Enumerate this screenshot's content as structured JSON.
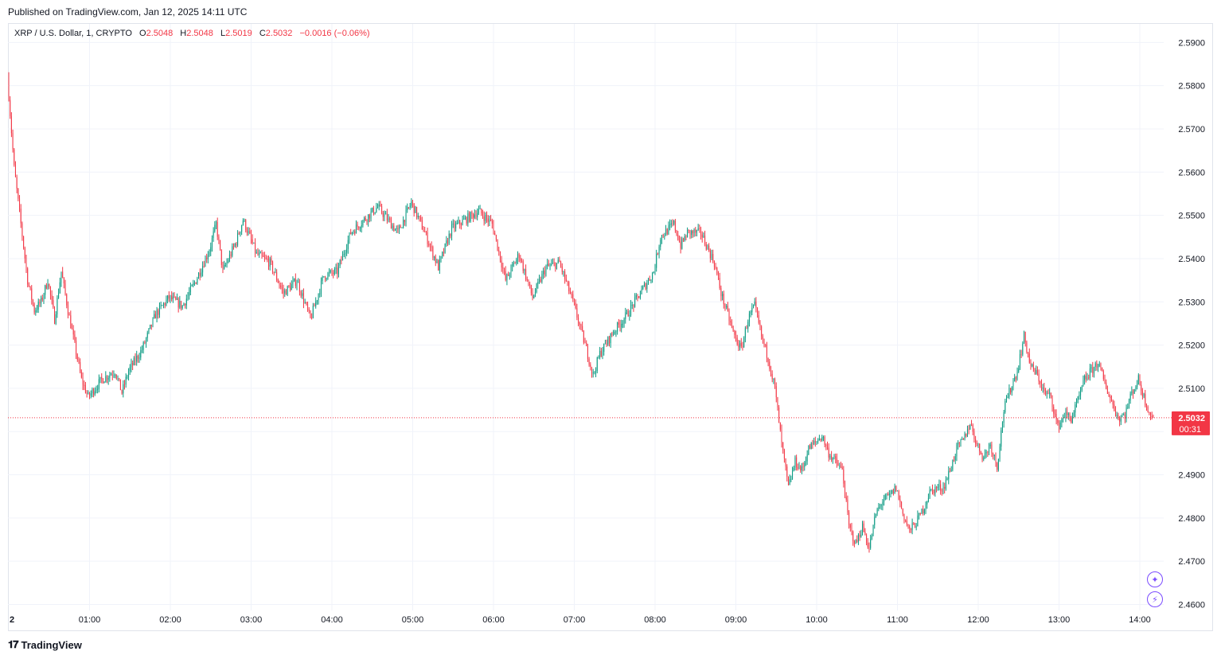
{
  "header": {
    "published_text": "Published on TradingView.com, Jan 12, 2025 14:11 UTC"
  },
  "legend": {
    "symbol_text": "XRP / U.S. Dollar, 1, CRYPTO",
    "open_label": "O",
    "open_value": "2.5048",
    "high_label": "H",
    "high_value": "2.5048",
    "low_label": "L",
    "low_value": "2.5019",
    "close_label": "C",
    "close_value": "2.5032",
    "change_text": "−0.0016 (−0.06%)"
  },
  "price_badge": {
    "price": "2.5032",
    "countdown": "00:31"
  },
  "footer": {
    "brand": "TradingView"
  },
  "icons": [
    "ai-sparkle-icon",
    "lightning-icon"
  ],
  "colors": {
    "up": "#089981",
    "down": "#f23645",
    "grid": "#f0f3fa",
    "accent": "#7b4cff"
  },
  "chart_data": {
    "type": "candlestick",
    "title": "XRP / U.S. Dollar, 1, CRYPTO",
    "interval": "1 minute",
    "x_range": [
      "00:00",
      "14:11"
    ],
    "y_range": [
      2.455,
      2.5965
    ],
    "y_ticks": [
      "2.5900",
      "2.5800",
      "2.5700",
      "2.5600",
      "2.5500",
      "2.5400",
      "2.5300",
      "2.5200",
      "2.5100",
      "2.5000",
      "2.4900",
      "2.4800",
      "2.4700",
      "2.4600"
    ],
    "x_ticks": [
      "2",
      "01:00",
      "02:00",
      "03:00",
      "04:00",
      "05:00",
      "06:00",
      "07:00",
      "08:00",
      "09:00",
      "10:00",
      "11:00",
      "12:00",
      "13:00",
      "14:00"
    ],
    "last_price": 2.5032,
    "price_path": [
      [
        "00:00",
        2.582
      ],
      [
        "00:05",
        2.561
      ],
      [
        "00:10",
        2.548
      ],
      [
        "00:15",
        2.535
      ],
      [
        "00:20",
        2.528
      ],
      [
        "00:25",
        2.53
      ],
      [
        "00:30",
        2.535
      ],
      [
        "00:35",
        2.526
      ],
      [
        "00:40",
        2.537
      ],
      [
        "00:45",
        2.528
      ],
      [
        "00:55",
        2.512
      ],
      [
        "01:00",
        2.508
      ],
      [
        "01:10",
        2.512
      ],
      [
        "01:20",
        2.514
      ],
      [
        "01:25",
        2.509
      ],
      [
        "01:30",
        2.514
      ],
      [
        "01:40",
        2.519
      ],
      [
        "01:50",
        2.527
      ],
      [
        "02:00",
        2.531
      ],
      [
        "02:10",
        2.529
      ],
      [
        "02:20",
        2.535
      ],
      [
        "02:30",
        2.542
      ],
      [
        "02:35",
        2.548
      ],
      [
        "02:40",
        2.537
      ],
      [
        "02:50",
        2.544
      ],
      [
        "02:55",
        2.549
      ],
      [
        "03:05",
        2.541
      ],
      [
        "03:15",
        2.539
      ],
      [
        "03:25",
        2.532
      ],
      [
        "03:35",
        2.535
      ],
      [
        "03:45",
        2.526
      ],
      [
        "03:55",
        2.536
      ],
      [
        "04:05",
        2.537
      ],
      [
        "04:15",
        2.546
      ],
      [
        "04:25",
        2.549
      ],
      [
        "04:35",
        2.552
      ],
      [
        "04:50",
        2.546
      ],
      [
        "05:00",
        2.553
      ],
      [
        "05:10",
        2.546
      ],
      [
        "05:20",
        2.538
      ],
      [
        "05:30",
        2.547
      ],
      [
        "05:40",
        2.549
      ],
      [
        "05:50",
        2.551
      ],
      [
        "06:00",
        2.548
      ],
      [
        "06:10",
        2.535
      ],
      [
        "06:20",
        2.541
      ],
      [
        "06:30",
        2.531
      ],
      [
        "06:40",
        2.538
      ],
      [
        "06:50",
        2.539
      ],
      [
        "07:00",
        2.53
      ],
      [
        "07:10",
        2.519
      ],
      [
        "07:15",
        2.513
      ],
      [
        "07:20",
        2.518
      ],
      [
        "07:30",
        2.523
      ],
      [
        "07:40",
        2.527
      ],
      [
        "07:50",
        2.532
      ],
      [
        "08:00",
        2.537
      ],
      [
        "08:05",
        2.545
      ],
      [
        "08:15",
        2.548
      ],
      [
        "08:20",
        2.543
      ],
      [
        "08:25",
        2.546
      ],
      [
        "08:35",
        2.546
      ],
      [
        "08:45",
        2.539
      ],
      [
        "08:50",
        2.532
      ],
      [
        "09:00",
        2.522
      ],
      [
        "09:05",
        2.519
      ],
      [
        "09:10",
        2.526
      ],
      [
        "09:15",
        2.529
      ],
      [
        "09:20",
        2.522
      ],
      [
        "09:25",
        2.517
      ],
      [
        "09:30",
        2.51
      ],
      [
        "09:35",
        2.497
      ],
      [
        "09:40",
        2.487
      ],
      [
        "09:45",
        2.493
      ],
      [
        "09:50",
        2.491
      ],
      [
        "09:55",
        2.496
      ],
      [
        "10:05",
        2.499
      ],
      [
        "10:10",
        2.495
      ],
      [
        "10:15",
        2.493
      ],
      [
        "10:20",
        2.491
      ],
      [
        "10:25",
        2.478
      ],
      [
        "10:30",
        2.474
      ],
      [
        "10:35",
        2.478
      ],
      [
        "10:40",
        2.473
      ],
      [
        "10:45",
        2.481
      ],
      [
        "10:50",
        2.484
      ],
      [
        "10:55",
        2.485
      ],
      [
        "11:00",
        2.487
      ],
      [
        "11:05",
        2.481
      ],
      [
        "11:10",
        2.477
      ],
      [
        "11:15",
        2.479
      ],
      [
        "11:20",
        2.482
      ],
      [
        "11:25",
        2.486
      ],
      [
        "11:30",
        2.487
      ],
      [
        "11:35",
        2.487
      ],
      [
        "11:40",
        2.491
      ],
      [
        "11:45",
        2.496
      ],
      [
        "11:50",
        2.498
      ],
      [
        "11:55",
        2.502
      ],
      [
        "12:00",
        2.497
      ],
      [
        "12:05",
        2.494
      ],
      [
        "12:10",
        2.497
      ],
      [
        "12:15",
        2.492
      ],
      [
        "12:20",
        2.505
      ],
      [
        "12:25",
        2.51
      ],
      [
        "12:30",
        2.514
      ],
      [
        "12:35",
        2.522
      ],
      [
        "12:40",
        2.515
      ],
      [
        "12:45",
        2.513
      ],
      [
        "12:50",
        2.509
      ],
      [
        "12:55",
        2.508
      ],
      [
        "13:00",
        2.501
      ],
      [
        "13:05",
        2.504
      ],
      [
        "13:10",
        2.503
      ],
      [
        "13:15",
        2.507
      ],
      [
        "13:20",
        2.512
      ],
      [
        "13:25",
        2.514
      ],
      [
        "13:30",
        2.516
      ],
      [
        "13:35",
        2.511
      ],
      [
        "13:40",
        2.507
      ],
      [
        "13:45",
        2.503
      ],
      [
        "13:50",
        2.504
      ],
      [
        "13:55",
        2.509
      ],
      [
        "14:00",
        2.512
      ],
      [
        "14:05",
        2.507
      ],
      [
        "14:10",
        2.5032
      ]
    ]
  }
}
